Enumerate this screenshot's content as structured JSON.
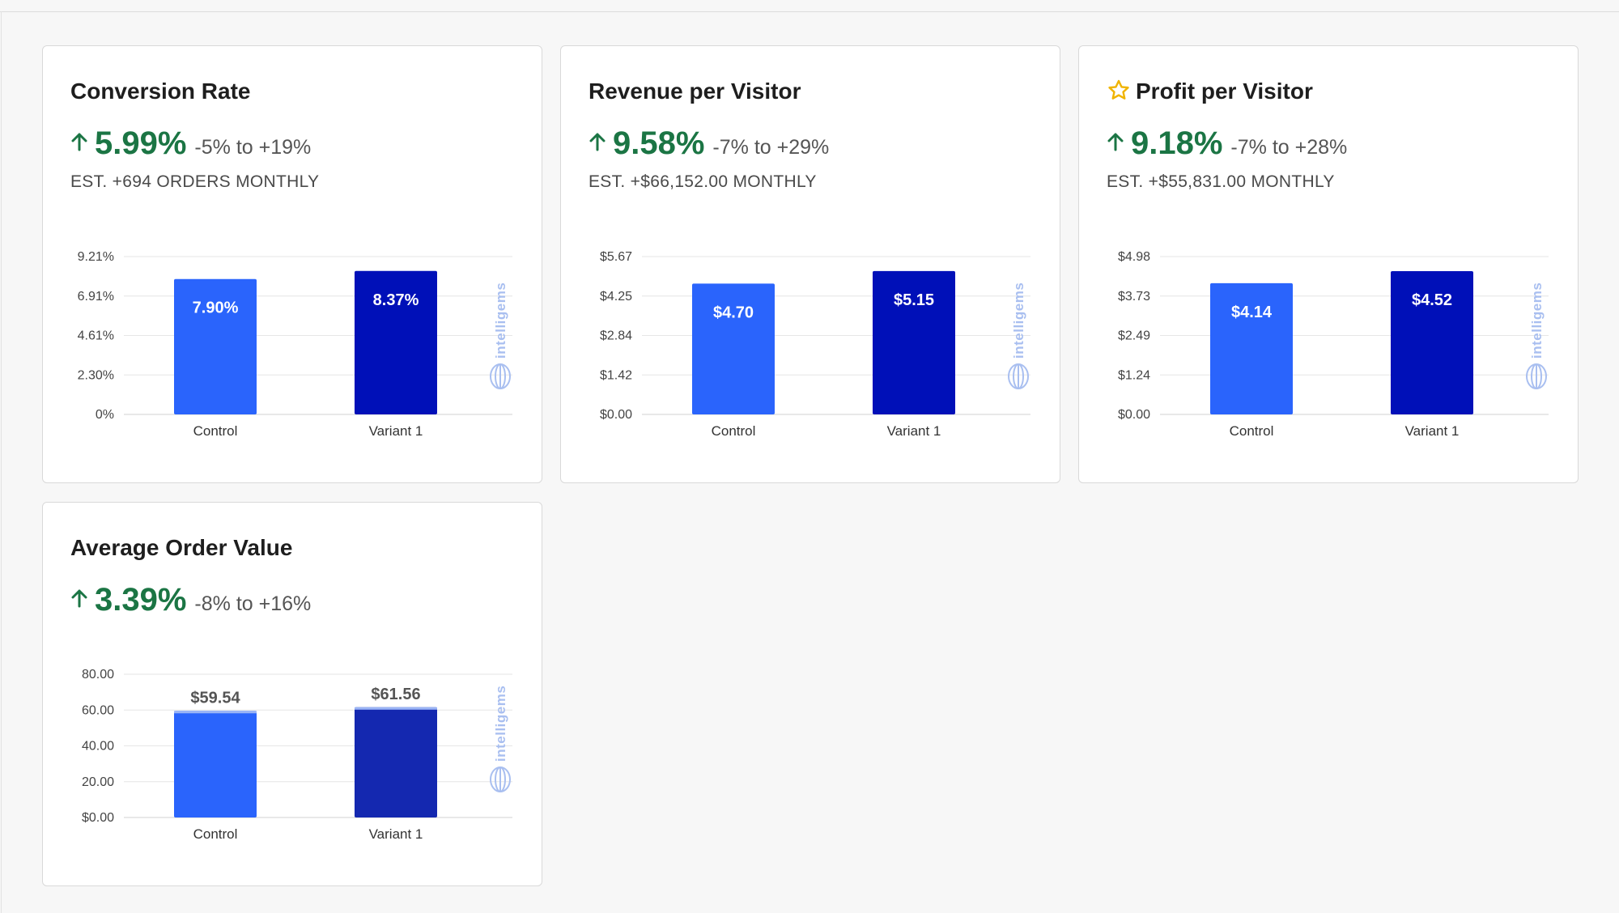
{
  "colors": {
    "control": "#2a64fc",
    "variant": "#0010b8",
    "variant_aov": "#1428b0",
    "positive": "#1b7544",
    "star": "#f0b400",
    "watermark": "#a9bff0"
  },
  "watermark_text": "intelligems",
  "cards": [
    {
      "title": "Conversion Rate",
      "starred": false,
      "lift": "5.99%",
      "range": "-5% to +19%",
      "estimate": "EST. +694 ORDERS MONTHLY"
    },
    {
      "title": "Revenue per Visitor",
      "starred": false,
      "lift": "9.58%",
      "range": "-7% to +29%",
      "estimate": "EST. +$66,152.00 MONTHLY"
    },
    {
      "title": "Profit per Visitor",
      "starred": true,
      "lift": "9.18%",
      "range": "-7% to +28%",
      "estimate": "EST. +$55,831.00 MONTHLY"
    },
    {
      "title": "Average Order Value",
      "starred": false,
      "lift": "3.39%",
      "range": "-8% to +16%",
      "estimate": ""
    }
  ],
  "chart_data": [
    {
      "type": "bar",
      "categories": [
        "Control",
        "Variant 1"
      ],
      "values": [
        7.9,
        8.37
      ],
      "data_labels": [
        "7.90%",
        "8.37%"
      ],
      "yticks": [
        "0%",
        "2.30%",
        "4.61%",
        "6.91%",
        "9.21%"
      ],
      "ylim": [
        0,
        9.21
      ],
      "grid": true,
      "label_position": "inside"
    },
    {
      "type": "bar",
      "categories": [
        "Control",
        "Variant 1"
      ],
      "values": [
        4.7,
        5.15
      ],
      "data_labels": [
        "$4.70",
        "$5.15"
      ],
      "yticks": [
        "$0.00",
        "$1.42",
        "$2.84",
        "$4.25",
        "$5.67"
      ],
      "ylim": [
        0,
        5.67
      ],
      "grid": true,
      "label_position": "inside"
    },
    {
      "type": "bar",
      "categories": [
        "Control",
        "Variant 1"
      ],
      "values": [
        4.14,
        4.52
      ],
      "data_labels": [
        "$4.14",
        "$4.52"
      ],
      "yticks": [
        "$0.00",
        "$1.24",
        "$2.49",
        "$3.73",
        "$4.98"
      ],
      "ylim": [
        0,
        4.98
      ],
      "grid": true,
      "label_position": "inside"
    },
    {
      "type": "bar",
      "categories": [
        "Control",
        "Variant 1"
      ],
      "values": [
        59.54,
        61.56
      ],
      "data_labels": [
        "$59.54",
        "$61.56"
      ],
      "yticks": [
        "$0.00",
        "20.00",
        "40.00",
        "60.00",
        "80.00"
      ],
      "ylim": [
        0,
        80
      ],
      "grid": true,
      "label_position": "outside"
    }
  ]
}
